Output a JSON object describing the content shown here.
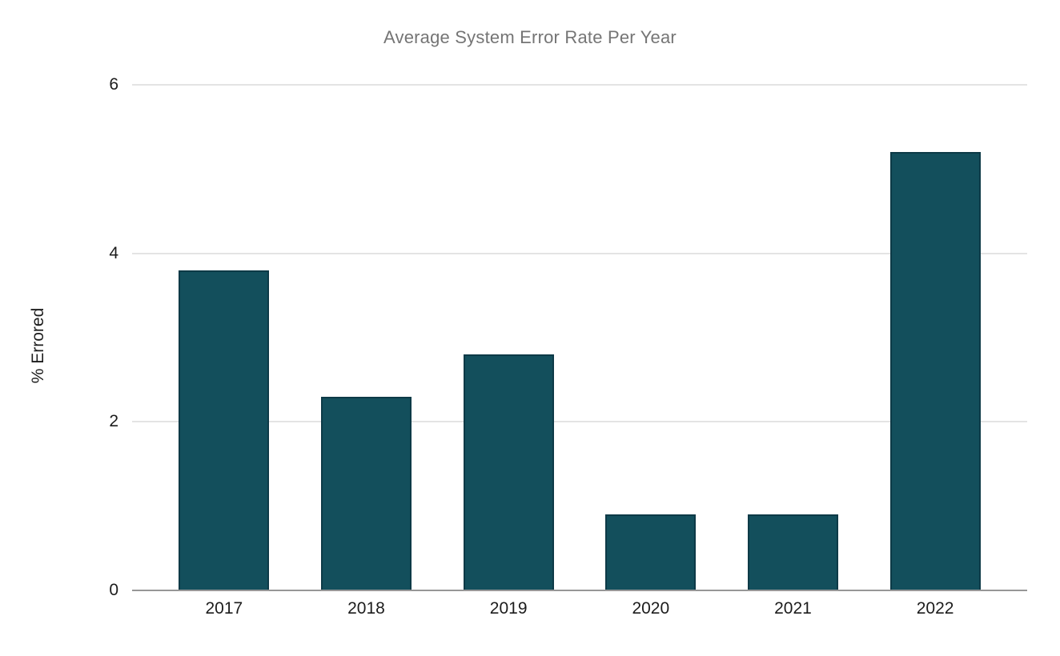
{
  "title": "Average System Error Rate Per Year",
  "colors": {
    "bar_fill": "#134f5c",
    "bar_border": "#0d3a47",
    "gridline": "#e4e4e4",
    "axis_line": "#979797",
    "title_text": "#757575",
    "tick_text": "#1c1c1c",
    "background": "#ffffff"
  },
  "chart_data": {
    "type": "bar",
    "categories": [
      "2017",
      "2018",
      "2019",
      "2020",
      "2021",
      "2022"
    ],
    "values": [
      3.8,
      2.3,
      2.8,
      0.9,
      0.9,
      5.2
    ],
    "title": "Average System Error Rate Per Year",
    "xlabel": "",
    "ylabel": "% Errored",
    "ylim": [
      0,
      6
    ],
    "yticks": [
      0,
      2,
      4,
      6
    ],
    "grid": true,
    "legend": "none"
  }
}
